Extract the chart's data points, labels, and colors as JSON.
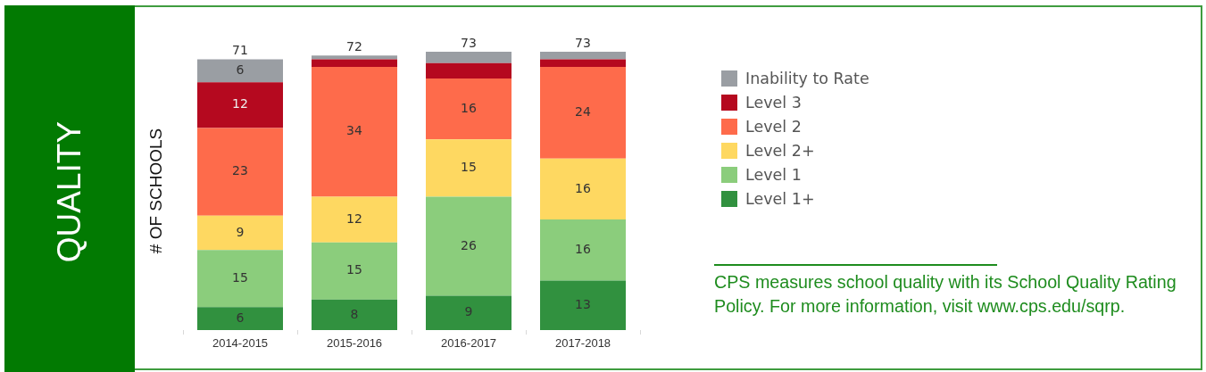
{
  "chart_data": {
    "type": "bar",
    "title": "QUALITY",
    "ylabel": "# OF SCHOOLS",
    "categories": [
      "2014-2015",
      "2015-2016",
      "2016-2017",
      "2017-2018"
    ],
    "stacked": true,
    "series": [
      {
        "name": "Level 1+",
        "color": "#31913f",
        "values": [
          6,
          8,
          9,
          13
        ],
        "value_labels": [
          "6",
          "8",
          "9",
          "13"
        ]
      },
      {
        "name": "Level 1",
        "color": "#8bcd7c",
        "values": [
          15,
          15,
          26,
          16
        ],
        "value_labels": [
          "15",
          "15",
          "26",
          "16"
        ]
      },
      {
        "name": "Level 2+",
        "color": "#fed861",
        "values": [
          9,
          12,
          15,
          16
        ],
        "value_labels": [
          "9",
          "12",
          "15",
          "16"
        ]
      },
      {
        "name": "Level 2",
        "color": "#fe6b4b",
        "values": [
          23,
          34,
          16,
          24
        ],
        "value_labels": [
          "23",
          "34",
          "16",
          "24"
        ]
      },
      {
        "name": "Level 3",
        "color": "#b5091f",
        "values": [
          12,
          2,
          4,
          2
        ],
        "value_labels": [
          "12",
          null,
          null,
          null
        ]
      },
      {
        "name": "Inability to Rate",
        "color": "#9a9ea3",
        "values": [
          6,
          1,
          3,
          2
        ],
        "value_labels": [
          "6",
          null,
          null,
          null
        ]
      }
    ],
    "totals": [
      "71",
      "72",
      "73",
      "73"
    ],
    "tick_labels": "x",
    "legend": "right",
    "annotations": [
      "CPS measures school quality with its School Quality Rating Policy. For more information, visit www.cps.edu/sqrp."
    ]
  }
}
